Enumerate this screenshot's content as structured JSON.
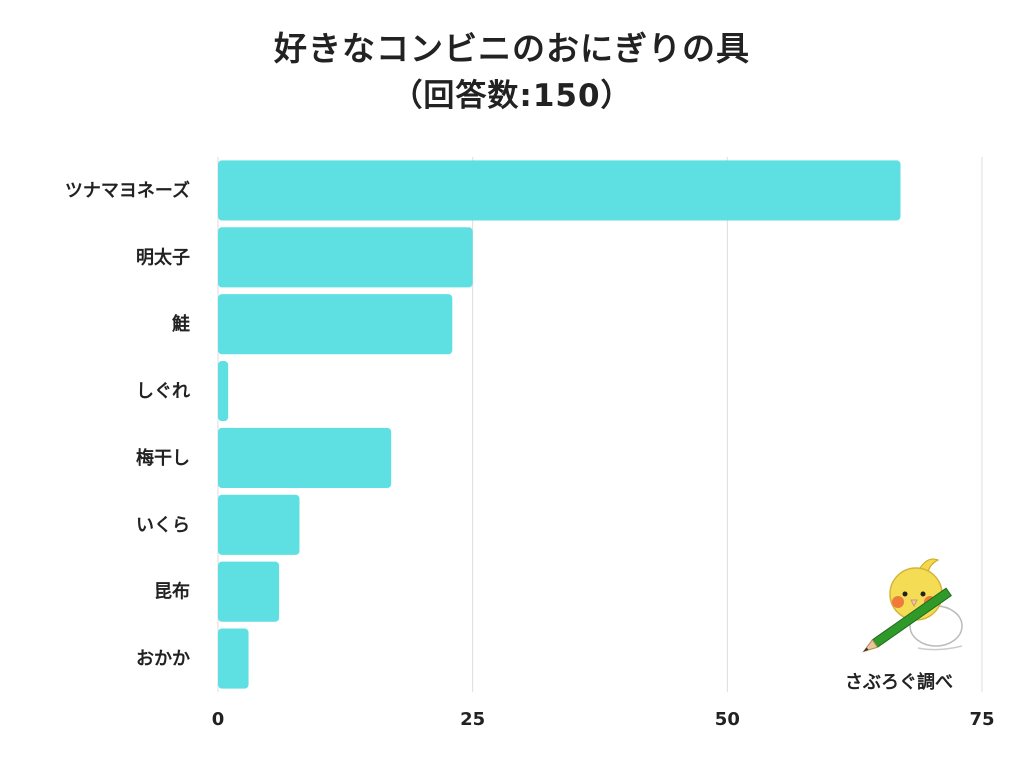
{
  "chart_data": {
    "type": "bar",
    "orientation": "horizontal",
    "title": "好きなコンビニのおにぎりの具",
    "subtitle": "（回答数:150）",
    "categories": [
      "ツナマヨネーズ",
      "明太子",
      "鮭",
      "しぐれ",
      "梅干し",
      "いくら",
      "昆布",
      "おかか"
    ],
    "values": [
      67,
      25,
      23,
      1,
      17,
      8,
      6,
      3
    ],
    "xlim": [
      0,
      75
    ],
    "xticks": [
      "0",
      "25",
      "50",
      "75"
    ],
    "grid": true,
    "bar_color": "#5ee0e3"
  },
  "credit": "さぶろぐ調べ",
  "mascot_icon": "cockatiel-with-pencil-icon"
}
